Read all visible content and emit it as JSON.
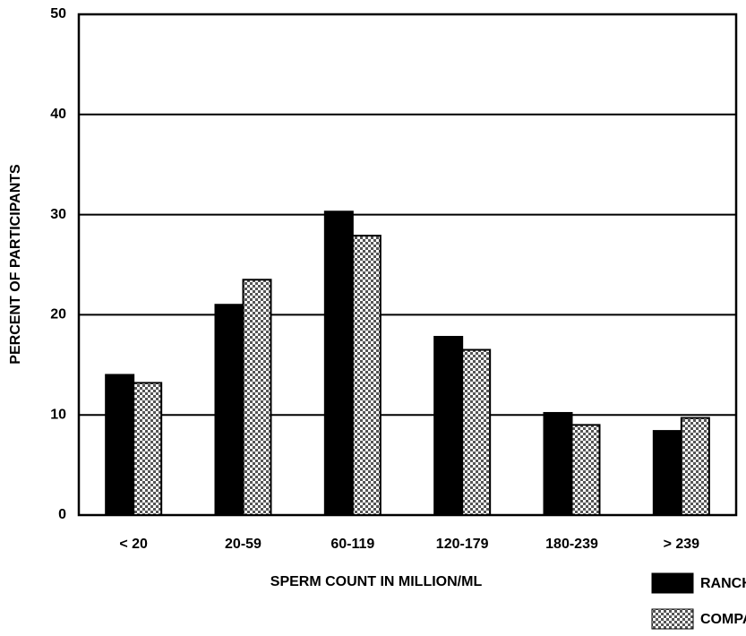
{
  "chart_data": {
    "type": "bar",
    "xlabel": "SPERM COUNT IN MILLION/ML",
    "ylabel": "PERCENT OF PARTICIPANTS",
    "categories": [
      "< 20",
      "20-59",
      "60-119",
      "120-179",
      "180-239",
      "> 239"
    ],
    "series": [
      {
        "name": "RANCH HAND",
        "color": "#000000",
        "values": [
          14.0,
          21.0,
          30.3,
          17.8,
          10.2,
          8.4
        ]
      },
      {
        "name": "COMPARISON",
        "color": "#bbbbbb",
        "values": [
          13.2,
          23.5,
          27.9,
          16.5,
          9.0,
          9.7
        ]
      }
    ],
    "ylim": [
      0,
      50
    ],
    "yticks": [
      0,
      10,
      20,
      30,
      40,
      50
    ],
    "grid": true
  }
}
